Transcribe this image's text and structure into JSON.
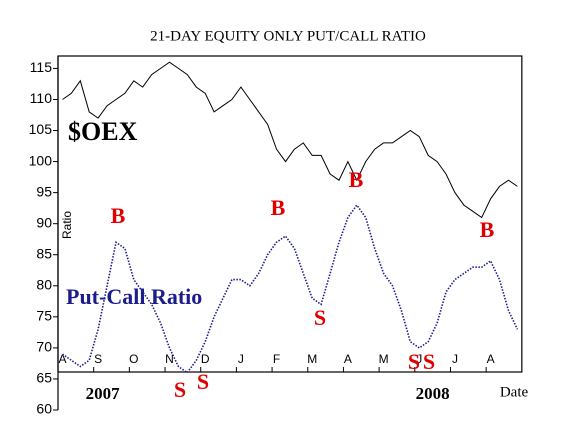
{
  "chart_data": {
    "type": "line",
    "title": "21-DAY EQUITY ONLY PUT/CALL RATIO",
    "y_label": "Ratio",
    "x_label": "Date",
    "year_labels": [
      "2007",
      "2008"
    ],
    "categories": [
      "A",
      null,
      null,
      null,
      "S",
      null,
      null,
      null,
      "O",
      null,
      null,
      null,
      "N",
      null,
      null,
      null,
      "D",
      null,
      null,
      null,
      "J",
      null,
      null,
      null,
      "F",
      null,
      null,
      null,
      "M",
      null,
      null,
      null,
      "A",
      null,
      null,
      null,
      "M",
      null,
      null,
      null,
      "J",
      null,
      null,
      null,
      "J",
      null,
      null,
      null,
      "A",
      null,
      null,
      null
    ],
    "series": [
      {
        "name": "$OEX",
        "color": "#000000",
        "values": [
          110,
          111,
          113,
          108,
          107,
          109,
          110,
          111,
          113,
          112,
          114,
          115,
          116,
          115,
          114,
          112,
          111,
          108,
          109,
          110,
          112,
          110,
          108,
          106,
          102,
          100,
          102,
          103,
          101,
          101,
          98,
          97,
          100,
          97,
          100,
          102,
          103,
          103,
          104,
          105,
          104,
          101,
          100,
          98,
          95,
          93,
          92,
          91,
          94,
          96,
          97,
          96
        ]
      },
      {
        "name": "Put-Call Ratio",
        "color": "#1c1c8c",
        "values": [
          69,
          68,
          67,
          68,
          73,
          80,
          87,
          86,
          81,
          79,
          77,
          74,
          70,
          67,
          66,
          68,
          71,
          75,
          78,
          81,
          81,
          80,
          82,
          85,
          87,
          88,
          86,
          82,
          78,
          77,
          82,
          87,
          91,
          93,
          91,
          86,
          82,
          80,
          76,
          71,
          70,
          71,
          74,
          79,
          81,
          82,
          83,
          83,
          84,
          81,
          76,
          73
        ]
      }
    ],
    "annotations": [
      "B",
      "S",
      "S",
      "B",
      "S",
      "B",
      "S",
      "S",
      "B"
    ],
    "annotation_color": "#e00000",
    "ylim": [
      60,
      117
    ],
    "yticks": [
      60,
      65,
      70,
      75,
      80,
      85,
      90,
      95,
      100,
      105,
      110,
      115
    ]
  }
}
